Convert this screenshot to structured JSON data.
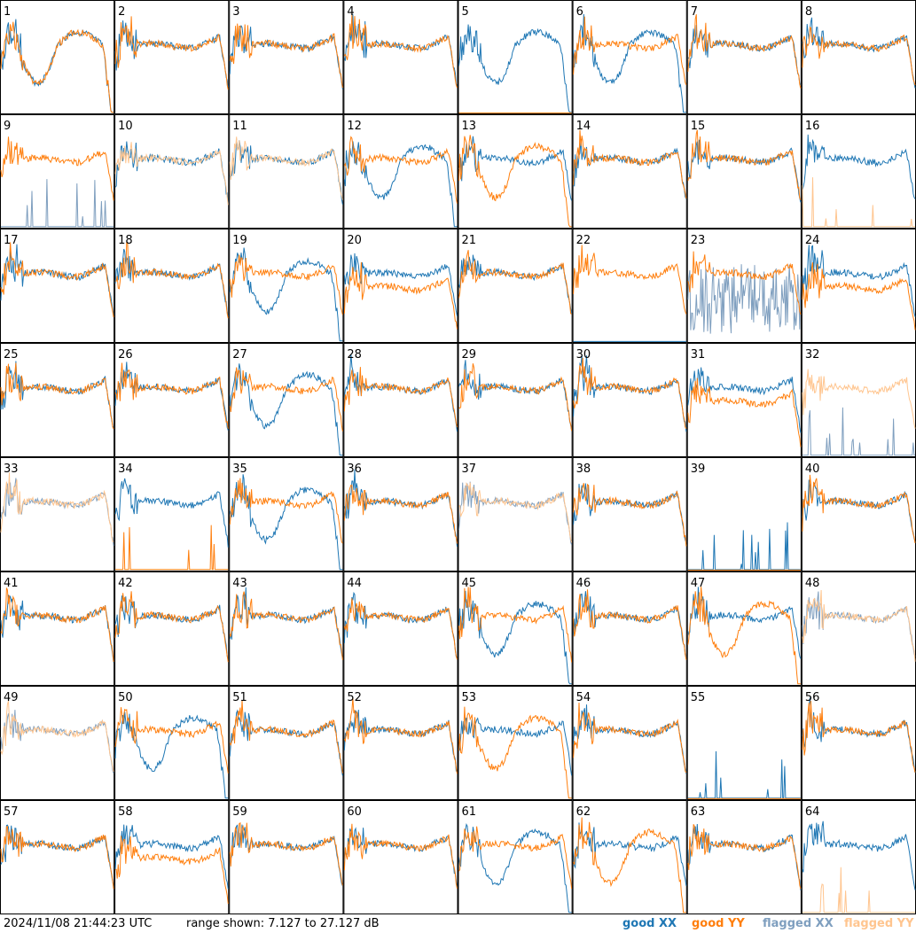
{
  "footer": {
    "timestamp": "2024/11/08 21:44:23 UTC",
    "range_text": "range shown: 7.127 to 27.127 dB"
  },
  "legend": [
    {
      "label": "good XX",
      "color": "#1f77b4"
    },
    {
      "label": "good YY",
      "color": "#ff7f0e"
    },
    {
      "label": "flagged XX",
      "color": "#7f9fbf"
    },
    {
      "label": "flagged YY",
      "color": "#ffc58f"
    }
  ],
  "colors": {
    "good_xx": "#1f77b4",
    "good_yy": "#ff7f0e",
    "flagged_xx": "#7f9fbf",
    "flagged_yy": "#ffc58f"
  },
  "chart_data": {
    "type": "line",
    "ylim": [
      7.127,
      27.127
    ],
    "yunit": "dB",
    "panels": [
      {
        "label": "1",
        "xx": "dip",
        "yy": "dip"
      },
      {
        "label": "2",
        "xx": "good",
        "yy": "good"
      },
      {
        "label": "3",
        "xx": "good",
        "yy": "good"
      },
      {
        "label": "4",
        "xx": "good",
        "yy": "good"
      },
      {
        "label": "5",
        "xx": "dip",
        "yy": "off"
      },
      {
        "label": "6",
        "xx": "dip",
        "yy": "good"
      },
      {
        "label": "7",
        "xx": "good",
        "yy": "good"
      },
      {
        "label": "8",
        "xx": "good",
        "yy": "good"
      },
      {
        "label": "9",
        "xx": "flagged-low",
        "yy": "good"
      },
      {
        "label": "10",
        "xx": "good",
        "yy": "flagged"
      },
      {
        "label": "11",
        "xx": "good",
        "yy": "flagged"
      },
      {
        "label": "12",
        "xx": "dip",
        "yy": "good"
      },
      {
        "label": "13",
        "xx": "good",
        "yy": "dip"
      },
      {
        "label": "14",
        "xx": "good",
        "yy": "good"
      },
      {
        "label": "15",
        "xx": "good",
        "yy": "good"
      },
      {
        "label": "16",
        "xx": "good",
        "yy": "flagged-low"
      },
      {
        "label": "17",
        "xx": "good",
        "yy": "good"
      },
      {
        "label": "18",
        "xx": "good",
        "yy": "good"
      },
      {
        "label": "19",
        "xx": "dip",
        "yy": "good"
      },
      {
        "label": "20",
        "xx": "good",
        "yy": "low"
      },
      {
        "label": "21",
        "xx": "good",
        "yy": "good"
      },
      {
        "label": "22",
        "xx": "off",
        "yy": "good"
      },
      {
        "label": "23",
        "xx": "flagged-noise",
        "yy": "good"
      },
      {
        "label": "24",
        "xx": "good",
        "yy": "low"
      },
      {
        "label": "25",
        "xx": "good",
        "yy": "good"
      },
      {
        "label": "26",
        "xx": "good",
        "yy": "good"
      },
      {
        "label": "27",
        "xx": "dip",
        "yy": "good"
      },
      {
        "label": "28",
        "xx": "good",
        "yy": "good"
      },
      {
        "label": "29",
        "xx": "good",
        "yy": "good"
      },
      {
        "label": "30",
        "xx": "good",
        "yy": "good"
      },
      {
        "label": "31",
        "xx": "good",
        "yy": "low"
      },
      {
        "label": "32",
        "xx": "flagged-low",
        "yy": "flagged"
      },
      {
        "label": "33",
        "xx": "flagged",
        "yy": "flagged"
      },
      {
        "label": "34",
        "xx": "good",
        "yy": "spiky-low"
      },
      {
        "label": "35",
        "xx": "dip",
        "yy": "good"
      },
      {
        "label": "36",
        "xx": "good",
        "yy": "good"
      },
      {
        "label": "37",
        "xx": "flagged",
        "yy": "flagged"
      },
      {
        "label": "38",
        "xx": "good",
        "yy": "good"
      },
      {
        "label": "39",
        "xx": "spike-low",
        "yy": "off"
      },
      {
        "label": "40",
        "xx": "good",
        "yy": "good"
      },
      {
        "label": "41",
        "xx": "good",
        "yy": "good"
      },
      {
        "label": "42",
        "xx": "good",
        "yy": "good"
      },
      {
        "label": "43",
        "xx": "good",
        "yy": "good"
      },
      {
        "label": "44",
        "xx": "good",
        "yy": "good"
      },
      {
        "label": "45",
        "xx": "dip",
        "yy": "good"
      },
      {
        "label": "46",
        "xx": "good",
        "yy": "good"
      },
      {
        "label": "47",
        "xx": "good",
        "yy": "dip"
      },
      {
        "label": "48",
        "xx": "flagged",
        "yy": "flagged"
      },
      {
        "label": "49",
        "xx": "flagged",
        "yy": "flagged"
      },
      {
        "label": "50",
        "xx": "dip",
        "yy": "good"
      },
      {
        "label": "51",
        "xx": "good",
        "yy": "good"
      },
      {
        "label": "52",
        "xx": "good",
        "yy": "good"
      },
      {
        "label": "53",
        "xx": "good",
        "yy": "dip"
      },
      {
        "label": "54",
        "xx": "good",
        "yy": "good"
      },
      {
        "label": "55",
        "xx": "spiky-low",
        "yy": "off"
      },
      {
        "label": "56",
        "xx": "good",
        "yy": "good"
      },
      {
        "label": "57",
        "xx": "good",
        "yy": "good"
      },
      {
        "label": "58",
        "xx": "good",
        "yy": "low"
      },
      {
        "label": "59",
        "xx": "good",
        "yy": "good"
      },
      {
        "label": "60",
        "xx": "good",
        "yy": "good"
      },
      {
        "label": "61",
        "xx": "dip",
        "yy": "good"
      },
      {
        "label": "62",
        "xx": "good",
        "yy": "dip"
      },
      {
        "label": "63",
        "xx": "good",
        "yy": "good"
      },
      {
        "label": "64",
        "xx": "good",
        "yy": "flagged-low"
      }
    ]
  }
}
